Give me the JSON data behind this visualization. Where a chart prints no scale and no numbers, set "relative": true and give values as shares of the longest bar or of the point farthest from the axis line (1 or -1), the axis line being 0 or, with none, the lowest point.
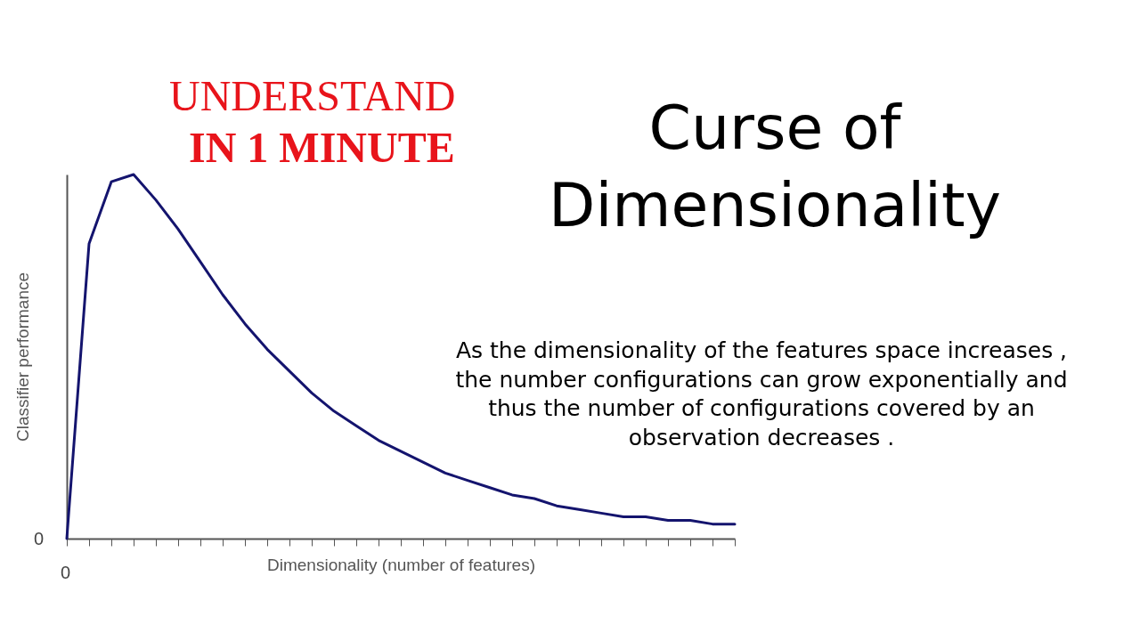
{
  "chart_data": {
    "type": "line",
    "title": "Curse of Dimensionality",
    "xlabel": "Dimensionality (number of features)",
    "ylabel": "Classifier performance",
    "relative": true,
    "categories": [
      null,
      null,
      null,
      null,
      null,
      null,
      null,
      null,
      null,
      null,
      null,
      null,
      null,
      null,
      null,
      null,
      null,
      null,
      null,
      null,
      null,
      null,
      null,
      null,
      null,
      null,
      null,
      null,
      null,
      null,
      null
    ],
    "series": [
      {
        "color": "#14146e",
        "values": [
          0,
          0.81,
          0.98,
          1,
          0.93,
          0.85,
          0.76,
          0.67,
          0.59,
          0.52,
          0.46,
          0.4,
          0.35,
          0.31,
          0.27,
          0.24,
          0.21,
          0.18,
          0.16,
          0.14,
          0.12,
          0.11,
          0.09,
          0.08,
          0.07,
          0.06,
          0.06,
          0.05,
          0.05,
          0.04,
          0.04
        ]
      }
    ],
    "annotations": [
      "0",
      "0",
      "UNDERSTAND",
      "IN 1 MINUTE",
      "As the dimensionality of the features space increases , the number configurations can grow exponentially and thus the number of configurations covered by an observation decreases ."
    ],
    "marker": "none",
    "line_style": "solid",
    "legend": false
  }
}
